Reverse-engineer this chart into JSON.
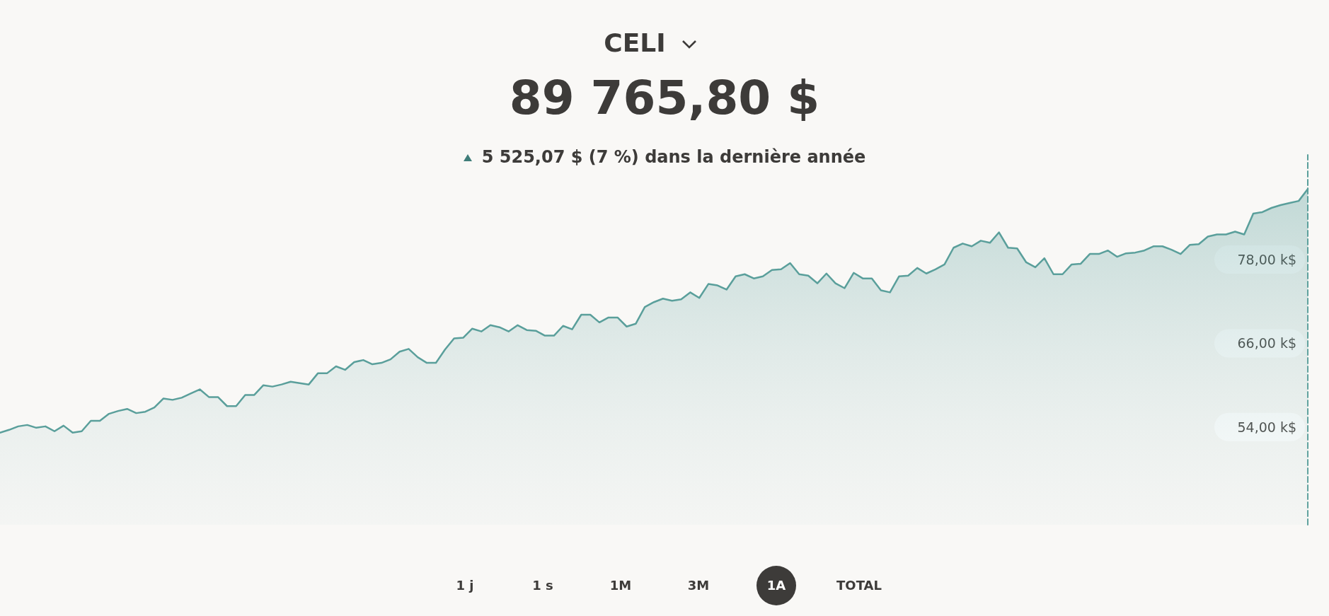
{
  "chart_data": {
    "type": "area",
    "title": "CELI",
    "subtitle": "89 765,80 $",
    "annotations": [
      "5 525,07 $ (7 %) dans la dernière année",
      "1 j",
      "1 s",
      "1M",
      "3M",
      "1A",
      "TOTAL"
    ],
    "categories": [
      null,
      null,
      null,
      null,
      null,
      null,
      null,
      null,
      null,
      null,
      null,
      null,
      null,
      null,
      null,
      null,
      null,
      null,
      null,
      null,
      null,
      null,
      null,
      null,
      null,
      null,
      null,
      null,
      null,
      null,
      null,
      null,
      null,
      null,
      null,
      null,
      null,
      null,
      null,
      null,
      null,
      null,
      null,
      null,
      null,
      null,
      null,
      null,
      null,
      null,
      null,
      null,
      null,
      null,
      null,
      null,
      null,
      null,
      null,
      null,
      null,
      null,
      null,
      null,
      null,
      null,
      null,
      null,
      null,
      null,
      null,
      null,
      null,
      null,
      null,
      null,
      null,
      null,
      null,
      null,
      null,
      null,
      null,
      null,
      null,
      null,
      null,
      null,
      null,
      null,
      null,
      null,
      null,
      null,
      null,
      null,
      null,
      null,
      null,
      null,
      null,
      null,
      null,
      null,
      null,
      null,
      null,
      null,
      null,
      null,
      null,
      null,
      null,
      null,
      null,
      null,
      null,
      null,
      null,
      null,
      null,
      null,
      null,
      null,
      null,
      null,
      null,
      null,
      null,
      null,
      null,
      null,
      null,
      null,
      null,
      null,
      null,
      null,
      null,
      null,
      null,
      null,
      null,
      null,
      null
    ],
    "series": [
      {
        "color": "#5a9f9b",
        "values": [
          53.2,
          53.6,
          54.1,
          54.3,
          53.9,
          54.1,
          53.4,
          54.2,
          53.2,
          53.4,
          54.9,
          54.9,
          55.9,
          56.3,
          56.6,
          56.0,
          56.2,
          56.8,
          58.1,
          57.9,
          58.2,
          58.8,
          59.4,
          58.3,
          58.3,
          57.0,
          57.0,
          58.6,
          58.6,
          60.0,
          59.8,
          60.1,
          60.5,
          60.3,
          60.1,
          61.7,
          61.7,
          62.7,
          62.2,
          63.3,
          63.6,
          63.0,
          63.2,
          63.7,
          64.8,
          65.2,
          64.0,
          63.2,
          63.2,
          65.1,
          66.7,
          66.8,
          68.1,
          67.7,
          68.6,
          68.3,
          67.7,
          68.6,
          67.9,
          67.8,
          67.1,
          67.1,
          68.5,
          68.0,
          70.1,
          70.1,
          69.0,
          69.7,
          69.7,
          68.4,
          68.8,
          71.2,
          71.9,
          72.4,
          72.1,
          72.3,
          73.3,
          72.5,
          74.5,
          74.3,
          73.7,
          75.6,
          75.9,
          75.3,
          75.6,
          76.5,
          76.6,
          77.5,
          75.9,
          75.7,
          74.6,
          76.0,
          74.6,
          73.9,
          76.1,
          75.3,
          75.3,
          73.6,
          73.3,
          75.6,
          75.7,
          76.8,
          76.0,
          76.6,
          77.3,
          79.7,
          80.3,
          79.9,
          80.7,
          80.4,
          81.9,
          79.7,
          79.6,
          77.6,
          76.9,
          78.2,
          75.9,
          75.9,
          77.3,
          77.4,
          78.8,
          78.8,
          79.3,
          78.4,
          78.9,
          79.0,
          79.3,
          79.9,
          79.9,
          79.4,
          78.8,
          80.1,
          80.2,
          81.3,
          81.6,
          81.6,
          82.0,
          81.6,
          84.6,
          84.8,
          85.4,
          85.8,
          86.1,
          86.4,
          88.1
        ]
      }
    ],
    "ylim": [
      40,
      93
    ],
    "yticks": [
      {
        "value": 54,
        "label": "54,00 k$"
      },
      {
        "value": 66,
        "label": "66,00 k$"
      },
      {
        "value": 78,
        "label": "78,00 k$"
      }
    ],
    "tick_labels": "y",
    "grid": false,
    "marker": "none",
    "line_style": "solid"
  }
}
